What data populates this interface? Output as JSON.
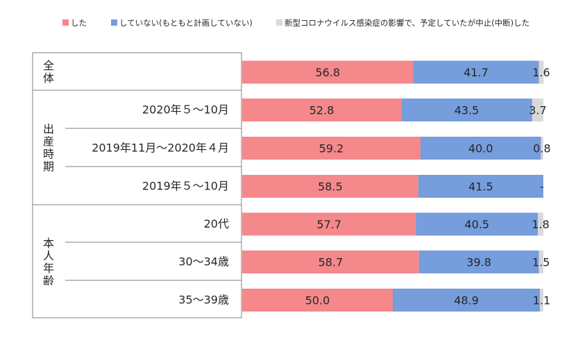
{
  "chart_data": {
    "type": "bar",
    "orientation": "horizontal",
    "stacked": "percent",
    "legend_position": "top",
    "legend": [
      {
        "name": "した",
        "color": "#f4888b"
      },
      {
        "name": "していない(もともと計画していない)",
        "color": "#769ddc"
      },
      {
        "name": "新型コロナウイルス感染症の影響で、予定していたが中止(中断)した",
        "color": "#d9d9d9"
      }
    ],
    "groups": [
      {
        "name": "全体",
        "rows": [
          0
        ]
      },
      {
        "name": "出産時期",
        "rows": [
          1,
          2,
          3
        ]
      },
      {
        "name": "本人年齢",
        "rows": [
          4,
          5,
          6
        ]
      }
    ],
    "categories": [
      "",
      "2020年５～10月",
      "2019年11月～2020年４月",
      "2019年５～10月",
      "20代",
      "30～34歳",
      "35～39歳"
    ],
    "series": [
      {
        "name": "した",
        "values": [
          56.8,
          52.8,
          59.2,
          58.5,
          57.7,
          58.7,
          50.0
        ],
        "labels": [
          "56.8",
          "52.8",
          "59.2",
          "58.5",
          "57.7",
          "58.7",
          "50.0"
        ]
      },
      {
        "name": "していない(もともと計画していない)",
        "values": [
          41.7,
          43.5,
          40.0,
          41.5,
          40.5,
          39.8,
          48.9
        ],
        "labels": [
          "41.7",
          "43.5",
          "40.0",
          "41.5",
          "40.5",
          "39.8",
          "48.9"
        ]
      },
      {
        "name": "新型コロナウイルス感染症の影響で、予定していたが中止(中断)した",
        "values": [
          1.6,
          3.7,
          0.8,
          0,
          1.8,
          1.5,
          1.1
        ],
        "labels": [
          "1.6",
          "3.7",
          "0.8",
          "-",
          "1.8",
          "1.5",
          "1.1"
        ]
      }
    ],
    "xlim": [
      0,
      100
    ]
  }
}
